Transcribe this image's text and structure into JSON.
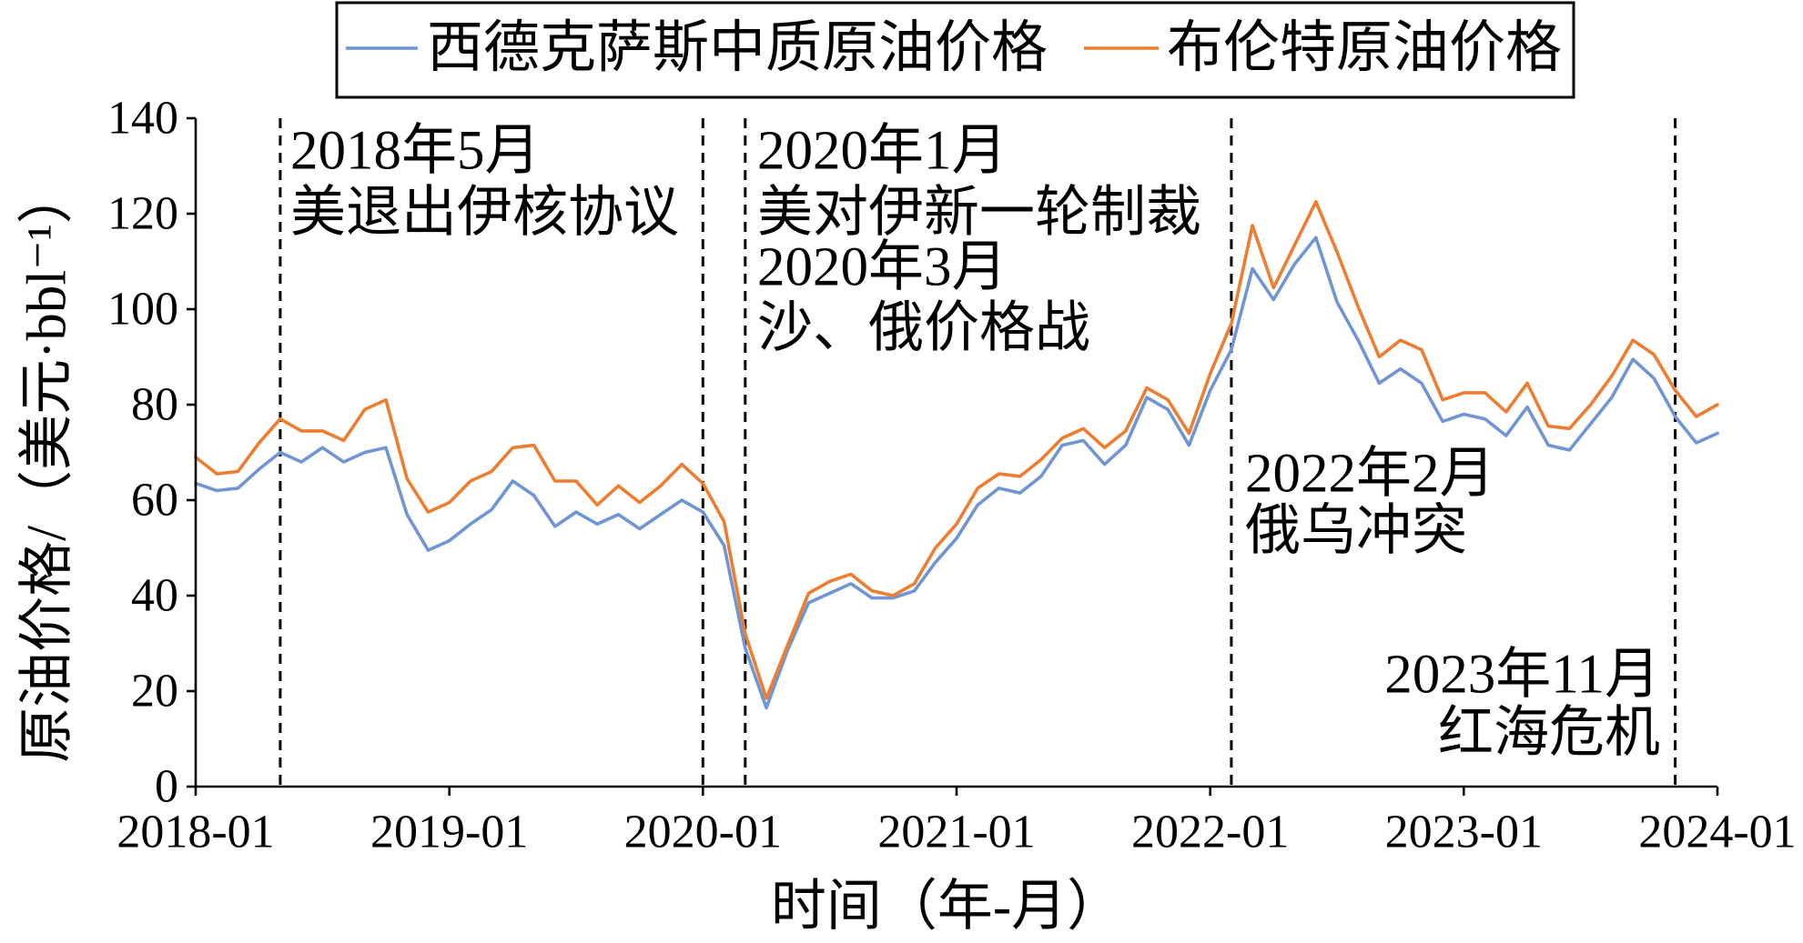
{
  "chart_data": {
    "type": "line",
    "xlabel": "时间（年-月）",
    "ylabel": "原油价格/（美元·bbl⁻¹）",
    "ylim": [
      0,
      140
    ],
    "yticks": [
      0,
      20,
      40,
      60,
      80,
      100,
      120,
      140
    ],
    "xlim": [
      "2018-01",
      "2024-01"
    ],
    "xticks": [
      "2018-01",
      "2019-01",
      "2020-01",
      "2021-01",
      "2022-01",
      "2023-01",
      "2024-01"
    ],
    "grid": false,
    "legend": "top",
    "x": [
      "2018-01",
      "2018-02",
      "2018-03",
      "2018-04",
      "2018-05",
      "2018-06",
      "2018-07",
      "2018-08",
      "2018-09",
      "2018-10",
      "2018-11",
      "2018-12",
      "2019-01",
      "2019-02",
      "2019-03",
      "2019-04",
      "2019-05",
      "2019-06",
      "2019-07",
      "2019-08",
      "2019-09",
      "2019-10",
      "2019-11",
      "2019-12",
      "2020-01",
      "2020-02",
      "2020-03",
      "2020-04",
      "2020-05",
      "2020-06",
      "2020-07",
      "2020-08",
      "2020-09",
      "2020-10",
      "2020-11",
      "2020-12",
      "2021-01",
      "2021-02",
      "2021-03",
      "2021-04",
      "2021-05",
      "2021-06",
      "2021-07",
      "2021-08",
      "2021-09",
      "2021-10",
      "2021-11",
      "2021-12",
      "2022-01",
      "2022-02",
      "2022-03",
      "2022-04",
      "2022-05",
      "2022-06",
      "2022-07",
      "2022-08",
      "2022-09",
      "2022-10",
      "2022-11",
      "2022-12",
      "2023-01",
      "2023-02",
      "2023-03",
      "2023-04",
      "2023-05",
      "2023-06",
      "2023-07",
      "2023-08",
      "2023-09",
      "2023-10",
      "2023-11",
      "2023-12",
      "2024-01"
    ],
    "series": [
      {
        "name": "西德克萨斯中质原油价格",
        "color": "#6F95D2",
        "values": [
          63.5,
          62,
          62.5,
          66.5,
          70,
          68,
          71,
          68,
          70,
          71,
          57,
          49.5,
          51.5,
          55,
          58,
          64,
          61,
          54.5,
          57.5,
          55,
          57,
          54,
          57,
          60,
          57.5,
          50.5,
          29,
          16.5,
          28.5,
          38.5,
          40.5,
          42.5,
          39.5,
          39.5,
          41,
          47,
          52,
          59,
          62.5,
          61.5,
          65,
          71.5,
          72.5,
          67.5,
          71.5,
          81.5,
          79,
          71.5,
          83,
          91.5,
          108.5,
          102,
          109.5,
          115,
          101.5,
          93.5,
          84.5,
          87.5,
          84.5,
          76.5,
          78,
          77,
          73.5,
          79.5,
          71.5,
          70.5,
          76,
          81.5,
          89.5,
          85.5,
          77.5,
          72,
          74
        ]
      },
      {
        "name": "布伦特原油价格",
        "color": "#ED7D31",
        "values": [
          69,
          65.5,
          66,
          72,
          77,
          74.5,
          74.5,
          72.5,
          79,
          81,
          64.5,
          57.5,
          59.5,
          64,
          66,
          71,
          71.5,
          64,
          64,
          59,
          63,
          59.5,
          63,
          67.5,
          63.5,
          55.5,
          32,
          18.5,
          29.5,
          40.5,
          43,
          44.5,
          41,
          40,
          42.5,
          50,
          55,
          62.5,
          65.5,
          65,
          68.5,
          73,
          75,
          71,
          74.5,
          83.5,
          81,
          74,
          86.5,
          97,
          117.5,
          104.5,
          113.5,
          122.5,
          112,
          100.5,
          90,
          93.5,
          91.5,
          81,
          82.5,
          82.5,
          78.5,
          84.5,
          75.5,
          75,
          80,
          86,
          93.5,
          90.5,
          83,
          77.5,
          80
        ]
      }
    ],
    "annotations": [
      {
        "event_x": [
          "2018-05"
        ],
        "lines": [
          "2018年5月",
          "美退出伊核协议"
        ]
      },
      {
        "event_x": [
          "2020-01",
          "2020-03"
        ],
        "lines": [
          "2020年1月",
          "美对伊新一轮制裁",
          "2020年3月",
          "沙、俄价格战"
        ]
      },
      {
        "event_x": [
          "2022-02"
        ],
        "lines": [
          "2022年2月",
          "俄乌冲突"
        ]
      },
      {
        "event_x": [
          "2023-11"
        ],
        "lines": [
          "2023年11月",
          "红海危机"
        ]
      }
    ]
  }
}
